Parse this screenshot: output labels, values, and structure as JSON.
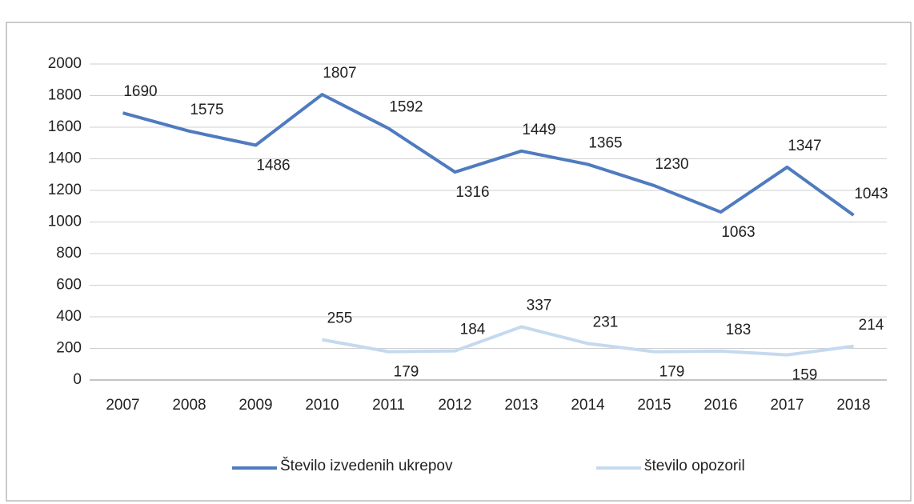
{
  "chart_data": {
    "type": "line",
    "categories": [
      "2007",
      "2008",
      "2009",
      "2010",
      "2011",
      "2012",
      "2013",
      "2014",
      "2015",
      "2016",
      "2017",
      "2018"
    ],
    "series": [
      {
        "name": "Število izvedenih ukrepov",
        "color": "#4f7bbf",
        "values": [
          1690,
          1575,
          1486,
          1807,
          1592,
          1316,
          1449,
          1365,
          1230,
          1063,
          1347,
          1043
        ]
      },
      {
        "name": "število opozoril",
        "color": "#c5d9ef",
        "values": [
          null,
          null,
          null,
          255,
          179,
          184,
          337,
          231,
          179,
          183,
          159,
          214
        ]
      }
    ],
    "ylim": [
      0,
      2000
    ],
    "yticks": [
      0,
      200,
      400,
      600,
      800,
      1000,
      1200,
      1400,
      1600,
      1800,
      2000
    ],
    "grid": true,
    "legend": "bottom"
  }
}
